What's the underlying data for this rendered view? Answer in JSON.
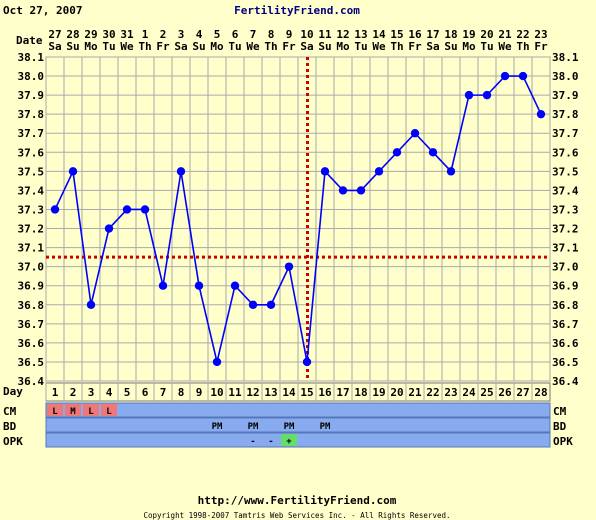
{
  "header": {
    "date": "Oct 27, 2007",
    "brand": "FertilityFriend.com"
  },
  "footer": {
    "url": "http://www.FertilityFriend.com",
    "copyright": "Copyright 1998-2007 Tamtris Web Services Inc. - All Rights Reserved."
  },
  "labels": {
    "date_row": "Date",
    "day_row": "Day",
    "cm": "CM",
    "bd": "BD",
    "opk": "OPK"
  },
  "colors": {
    "background": "#ffffcc",
    "plot": "#ffffcc",
    "grid": "#aaaaaa",
    "line": "#0000ff",
    "point": "#0000ff",
    "coverline": "#cc0000",
    "ovulation_line": "#cc0000",
    "row_bg": "#88aaee",
    "cm_cell": "#ee7777",
    "opk_positive": "#66dd66",
    "brand": "#000080"
  },
  "chart_data": {
    "type": "line",
    "dates": [
      "27",
      "28",
      "29",
      "30",
      "31",
      "1",
      "2",
      "3",
      "4",
      "5",
      "6",
      "7",
      "8",
      "9",
      "10",
      "11",
      "12",
      "13",
      "14",
      "15",
      "16",
      "17",
      "18",
      "19",
      "20",
      "21",
      "22",
      "23"
    ],
    "weekdays": [
      "Sa",
      "Su",
      "Mo",
      "Tu",
      "We",
      "Th",
      "Fr",
      "Sa",
      "Su",
      "Mo",
      "Tu",
      "We",
      "Th",
      "Fr",
      "Sa",
      "Su",
      "Mo",
      "Tu",
      "We",
      "Th",
      "Fr",
      "Sa",
      "Su",
      "Mo",
      "Tu",
      "We",
      "Th",
      "Fr"
    ],
    "cycle_days": [
      1,
      2,
      3,
      4,
      5,
      6,
      7,
      8,
      9,
      10,
      11,
      12,
      13,
      14,
      15,
      16,
      17,
      18,
      19,
      20,
      21,
      22,
      23,
      24,
      25,
      26,
      27,
      28
    ],
    "temperatures": [
      37.3,
      37.5,
      36.8,
      37.2,
      37.3,
      37.3,
      36.9,
      37.5,
      36.9,
      36.5,
      36.9,
      36.8,
      36.8,
      37.0,
      36.5,
      37.5,
      37.4,
      37.4,
      37.5,
      37.6,
      37.7,
      37.6,
      37.5,
      37.9,
      37.9,
      38.0,
      38.0,
      37.8
    ],
    "y_ticks": [
      "36.4",
      "36.5",
      "36.6",
      "36.7",
      "36.8",
      "36.9",
      "37.0",
      "37.1",
      "37.2",
      "37.3",
      "37.4",
      "37.5",
      "37.6",
      "37.7",
      "37.8",
      "37.9",
      "38.0",
      "38.1"
    ],
    "ylim": [
      36.4,
      38.1
    ],
    "coverline": 37.05,
    "ovulation_day": 15,
    "cm": [
      "L",
      "M",
      "L",
      "L",
      "",
      "",
      "",
      "",
      "",
      "",
      "",
      "",
      "",
      "",
      "",
      "",
      "",
      "",
      "",
      "",
      "",
      "",
      "",
      "",
      "",
      "",
      "",
      ""
    ],
    "bd": [
      "",
      "",
      "",
      "",
      "",
      "",
      "",
      "",
      "",
      "PM",
      "",
      "PM",
      "",
      "PM",
      "",
      "PM",
      "",
      "",
      "",
      "",
      "",
      "",
      "",
      "",
      "",
      "",
      "",
      ""
    ],
    "opk": [
      "",
      "",
      "",
      "",
      "",
      "",
      "",
      "",
      "",
      "",
      "",
      "-",
      "-",
      "+",
      "",
      "",
      "",
      "",
      "",
      "",
      "",
      "",
      "",
      "",
      "",
      "",
      "",
      ""
    ],
    "grid": true
  }
}
